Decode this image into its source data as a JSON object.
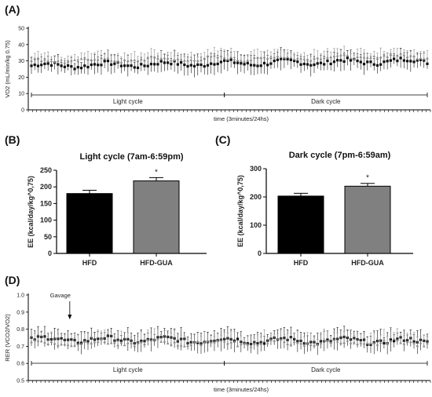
{
  "panels": {
    "A": "(A)",
    "B": "(B)",
    "C": "(C)",
    "D": "(D)"
  },
  "chart_data": [
    {
      "id": "A",
      "type": "line",
      "ylabel": "VO2 (mL/min/kg 0.75)",
      "xlabel": "time (3minutes/24hs)",
      "ylim": [
        0,
        50
      ],
      "yticks": [
        0,
        10,
        20,
        30,
        40,
        50
      ],
      "ytick_labels": [
        "0",
        "10",
        "20",
        "30",
        "40",
        "50"
      ],
      "n_points": 120,
      "segments": [
        {
          "label": "Light cycle",
          "start": 0,
          "end": 58
        },
        {
          "label": "Dark cycle",
          "start": 58,
          "end": 120
        }
      ],
      "series": [
        {
          "color": "#111111",
          "marker": "square",
          "mean_start": 27,
          "mean_end": 30,
          "err": 5
        },
        {
          "color": "#8a8a8a",
          "marker": "triangle",
          "mean_start": 30,
          "mean_end": 33,
          "err": 4
        }
      ]
    },
    {
      "id": "B",
      "type": "bar",
      "title": "Light cycle (7am-6:59pm)",
      "ylabel": "EE (kcal/day/kg^0,75)",
      "ylim": [
        0,
        250
      ],
      "yticks": [
        0,
        50,
        100,
        150,
        200,
        250
      ],
      "ytick_labels": [
        "0",
        "50",
        "100",
        "150",
        "200",
        "250"
      ],
      "categories": [
        "HFD",
        "HFD-GUA"
      ],
      "values": [
        180,
        218
      ],
      "errors": [
        10,
        10
      ],
      "colors": [
        "#000000",
        "#808080"
      ],
      "annotations": [
        "",
        "*"
      ]
    },
    {
      "id": "C",
      "type": "bar",
      "title": "Dark cycle (7pm-6:59am)",
      "ylabel": "EE (kcal/day/kg^0,75)",
      "ylim": [
        0,
        300
      ],
      "yticks": [
        0,
        100,
        200,
        300
      ],
      "ytick_labels": [
        "0",
        "100",
        "200",
        "300"
      ],
      "categories": [
        "HFD",
        "HFD-GUA"
      ],
      "values": [
        203,
        238
      ],
      "errors": [
        10,
        10
      ],
      "colors": [
        "#000000",
        "#808080"
      ],
      "annotations": [
        "",
        "*"
      ]
    },
    {
      "id": "D",
      "type": "line",
      "ylabel": "RER (VCO2/VO2)",
      "xlabel": "time (3minutes/24hs)",
      "ylim": [
        0.5,
        1.0
      ],
      "yticks": [
        0.5,
        0.6,
        0.7,
        0.8,
        0.9,
        1.0
      ],
      "ytick_labels": [
        "0.5",
        "0.6",
        "0.7",
        "0.8",
        "0.9",
        "1.0"
      ],
      "n_points": 120,
      "annotation": "Gavage",
      "annotation_index": 12,
      "segments": [
        {
          "label": "Light cycle",
          "start": 0,
          "end": 58
        },
        {
          "label": "Dark cycle",
          "start": 58,
          "end": 120
        }
      ],
      "series": [
        {
          "color": "#111111",
          "marker": "square",
          "mean_start": 0.74,
          "mean_end": 0.73,
          "err": 0.05
        },
        {
          "color": "#8a8a8a",
          "marker": "triangle",
          "mean_start": 0.72,
          "mean_end": 0.72,
          "err": 0.05
        }
      ]
    }
  ]
}
